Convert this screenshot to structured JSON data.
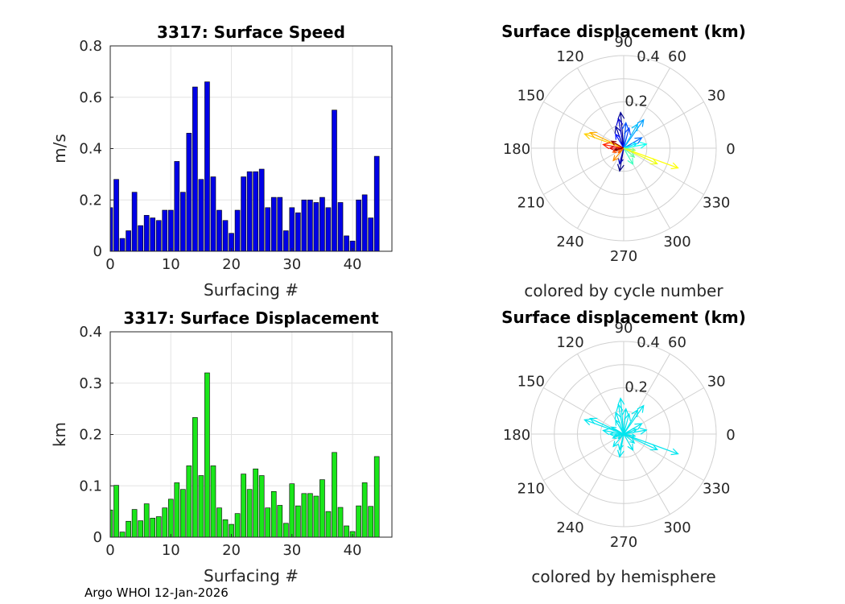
{
  "footer": "Argo WHOI 12-Jan-2026",
  "chart_data": [
    {
      "type": "bar",
      "title": "3317: Surface Speed",
      "xlabel": "Surfacing #",
      "ylabel": "m/s",
      "xlim": [
        0,
        46.5
      ],
      "ylim": [
        0,
        0.8
      ],
      "xticks": [
        "0",
        "10",
        "20",
        "30",
        "40"
      ],
      "yticks": [
        "0",
        "0.2",
        "0.4",
        "0.6",
        "0.8"
      ],
      "color": "#0000e6",
      "grid": true,
      "x": [
        0,
        1,
        2,
        3,
        4,
        5,
        6,
        7,
        8,
        9,
        10,
        11,
        12,
        13,
        14,
        15,
        16,
        17,
        18,
        19,
        20,
        21,
        22,
        23,
        24,
        25,
        26,
        27,
        28,
        29,
        30,
        31,
        32,
        33,
        34,
        35,
        36,
        37,
        38,
        39,
        40,
        41,
        42,
        43,
        44
      ],
      "values": [
        0.17,
        0.28,
        0.05,
        0.08,
        0.23,
        0.1,
        0.14,
        0.13,
        0.12,
        0.16,
        0.16,
        0.35,
        0.23,
        0.46,
        0.64,
        0.28,
        0.66,
        0.29,
        0.16,
        0.12,
        0.07,
        0.16,
        0.29,
        0.31,
        0.31,
        0.32,
        0.17,
        0.21,
        0.21,
        0.08,
        0.17,
        0.15,
        0.2,
        0.2,
        0.19,
        0.21,
        0.17,
        0.55,
        0.19,
        0.06,
        0.04,
        0.2,
        0.22,
        0.13,
        0.37
      ]
    },
    {
      "type": "polar-quiver",
      "title": "Surface displacement (km)",
      "caption": "colored by cycle number",
      "rlim": [
        0,
        0.4
      ],
      "rticks": [
        "0.2",
        "0.4"
      ],
      "angle_labels": [
        "0",
        "30",
        "60",
        "90",
        "120",
        "150",
        "180",
        "210",
        "240",
        "270",
        "300",
        "330"
      ],
      "vectors": [
        {
          "angle": 95,
          "r": 0.155,
          "color": "#00008f"
        },
        {
          "angle": 110,
          "r": 0.1,
          "color": "#00009f"
        },
        {
          "angle": 100,
          "r": 0.13,
          "color": "#0000cf"
        },
        {
          "angle": 120,
          "r": 0.07,
          "color": "#0010ff"
        },
        {
          "angle": 75,
          "r": 0.09,
          "color": "#0040ff"
        },
        {
          "angle": 85,
          "r": 0.11,
          "color": "#0050ff"
        },
        {
          "angle": 260,
          "r": 0.1,
          "color": "#000080"
        },
        {
          "angle": 255,
          "r": 0.07,
          "color": "#0000bf"
        },
        {
          "angle": 30,
          "r": 0.09,
          "color": "#0070ff"
        },
        {
          "angle": 55,
          "r": 0.15,
          "color": "#00a0ff"
        },
        {
          "angle": 60,
          "r": 0.12,
          "color": "#00c0ff"
        },
        {
          "angle": 20,
          "r": 0.06,
          "color": "#00e0ff"
        },
        {
          "angle": 10,
          "r": 0.1,
          "color": "#10ffef"
        },
        {
          "angle": 300,
          "r": 0.08,
          "color": "#40ffbf"
        },
        {
          "angle": 320,
          "r": 0.06,
          "color": "#60ff9f"
        },
        {
          "angle": 340,
          "r": 0.25,
          "color": "#ffff00"
        },
        {
          "angle": 335,
          "r": 0.16,
          "color": "#eeff10"
        },
        {
          "angle": 160,
          "r": 0.18,
          "color": "#ffd000"
        },
        {
          "angle": 155,
          "r": 0.16,
          "color": "#ffb000"
        },
        {
          "angle": 230,
          "r": 0.07,
          "color": "#ff9000"
        },
        {
          "angle": 200,
          "r": 0.05,
          "color": "#ff5000"
        },
        {
          "angle": 170,
          "r": 0.09,
          "color": "#ff2000"
        },
        {
          "angle": 180,
          "r": 0.06,
          "color": "#df0000"
        },
        {
          "angle": 150,
          "r": 0.06,
          "color": "#a00000"
        },
        {
          "angle": 190,
          "r": 0.04,
          "color": "#800000"
        },
        {
          "angle": 220,
          "r": 0.03,
          "color": "#ff6000"
        },
        {
          "angle": 350,
          "r": 0.05,
          "color": "#90ff70"
        }
      ]
    },
    {
      "type": "bar",
      "title": "3317: Surface Displacement",
      "xlabel": "Surfacing #",
      "ylabel": "km",
      "xlim": [
        0,
        46.5
      ],
      "ylim": [
        0,
        0.4
      ],
      "xticks": [
        "0",
        "10",
        "20",
        "30",
        "40"
      ],
      "yticks": [
        "0",
        "0.1",
        "0.2",
        "0.3",
        "0.4"
      ],
      "color": "#1ae61a",
      "grid": true,
      "x": [
        0,
        1,
        2,
        3,
        4,
        5,
        6,
        7,
        8,
        9,
        10,
        11,
        12,
        13,
        14,
        15,
        16,
        17,
        18,
        19,
        20,
        21,
        22,
        23,
        24,
        25,
        26,
        27,
        28,
        29,
        30,
        31,
        32,
        33,
        34,
        35,
        36,
        37,
        38,
        39,
        40,
        41,
        42,
        43,
        44
      ],
      "values": [
        0.053,
        0.101,
        0.01,
        0.031,
        0.054,
        0.032,
        0.065,
        0.037,
        0.04,
        0.057,
        0.074,
        0.106,
        0.093,
        0.139,
        0.233,
        0.12,
        0.32,
        0.139,
        0.057,
        0.034,
        0.025,
        0.046,
        0.123,
        0.093,
        0.133,
        0.12,
        0.057,
        0.089,
        0.062,
        0.027,
        0.104,
        0.061,
        0.085,
        0.085,
        0.08,
        0.112,
        0.05,
        0.165,
        0.058,
        0.022,
        0.011,
        0.061,
        0.106,
        0.06,
        0.157
      ]
    },
    {
      "type": "polar-quiver",
      "title": "Surface displacement (km)",
      "caption": "colored by hemisphere",
      "rlim": [
        0,
        0.4
      ],
      "rticks": [
        "0.2",
        "0.4"
      ],
      "angle_labels": [
        "0",
        "30",
        "60",
        "90",
        "120",
        "150",
        "180",
        "210",
        "240",
        "270",
        "300",
        "330"
      ],
      "vectors": [
        {
          "angle": 95,
          "r": 0.155,
          "color": "#00e5ee"
        },
        {
          "angle": 110,
          "r": 0.1,
          "color": "#00e5ee"
        },
        {
          "angle": 100,
          "r": 0.13,
          "color": "#00e5ee"
        },
        {
          "angle": 120,
          "r": 0.07,
          "color": "#00e5ee"
        },
        {
          "angle": 75,
          "r": 0.09,
          "color": "#00e5ee"
        },
        {
          "angle": 85,
          "r": 0.11,
          "color": "#00e5ee"
        },
        {
          "angle": 260,
          "r": 0.1,
          "color": "#00e5ee"
        },
        {
          "angle": 255,
          "r": 0.07,
          "color": "#00e5ee"
        },
        {
          "angle": 30,
          "r": 0.09,
          "color": "#00e5ee"
        },
        {
          "angle": 55,
          "r": 0.15,
          "color": "#00e5ee"
        },
        {
          "angle": 60,
          "r": 0.12,
          "color": "#00e5ee"
        },
        {
          "angle": 20,
          "r": 0.06,
          "color": "#00e5ee"
        },
        {
          "angle": 10,
          "r": 0.1,
          "color": "#00e5ee"
        },
        {
          "angle": 300,
          "r": 0.08,
          "color": "#00e5ee"
        },
        {
          "angle": 320,
          "r": 0.06,
          "color": "#00e5ee"
        },
        {
          "angle": 340,
          "r": 0.25,
          "color": "#00e5ee"
        },
        {
          "angle": 335,
          "r": 0.16,
          "color": "#00e5ee"
        },
        {
          "angle": 160,
          "r": 0.18,
          "color": "#00e5ee"
        },
        {
          "angle": 155,
          "r": 0.16,
          "color": "#00e5ee"
        },
        {
          "angle": 230,
          "r": 0.07,
          "color": "#00e5ee"
        },
        {
          "angle": 200,
          "r": 0.05,
          "color": "#00e5ee"
        },
        {
          "angle": 170,
          "r": 0.09,
          "color": "#00e5ee"
        },
        {
          "angle": 180,
          "r": 0.06,
          "color": "#00e5ee"
        },
        {
          "angle": 150,
          "r": 0.06,
          "color": "#00e5ee"
        },
        {
          "angle": 190,
          "r": 0.04,
          "color": "#00e5ee"
        },
        {
          "angle": 220,
          "r": 0.03,
          "color": "#00e5ee"
        },
        {
          "angle": 350,
          "r": 0.05,
          "color": "#00e5ee"
        }
      ]
    }
  ]
}
